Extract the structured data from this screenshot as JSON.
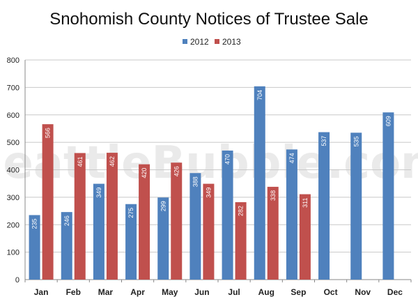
{
  "chart_data": {
    "type": "bar",
    "title": "Snohomish County Notices of Trustee Sale",
    "watermark": "SeattleBubble.com",
    "categories": [
      "Jan",
      "Feb",
      "Mar",
      "Apr",
      "May",
      "Jun",
      "Jul",
      "Aug",
      "Sep",
      "Oct",
      "Nov",
      "Dec"
    ],
    "series": [
      {
        "name": "2012",
        "color": "#4F81BD",
        "values": [
          235,
          246,
          349,
          275,
          299,
          388,
          470,
          704,
          474,
          537,
          535,
          609
        ]
      },
      {
        "name": "2013",
        "color": "#C0504D",
        "values": [
          566,
          461,
          462,
          420,
          426,
          349,
          282,
          338,
          311,
          null,
          null,
          null
        ]
      }
    ],
    "ylim": [
      0,
      800
    ],
    "yticks": [
      0,
      100,
      200,
      300,
      400,
      500,
      600,
      700,
      800
    ],
    "grid": true,
    "legend_position": "top-center"
  }
}
